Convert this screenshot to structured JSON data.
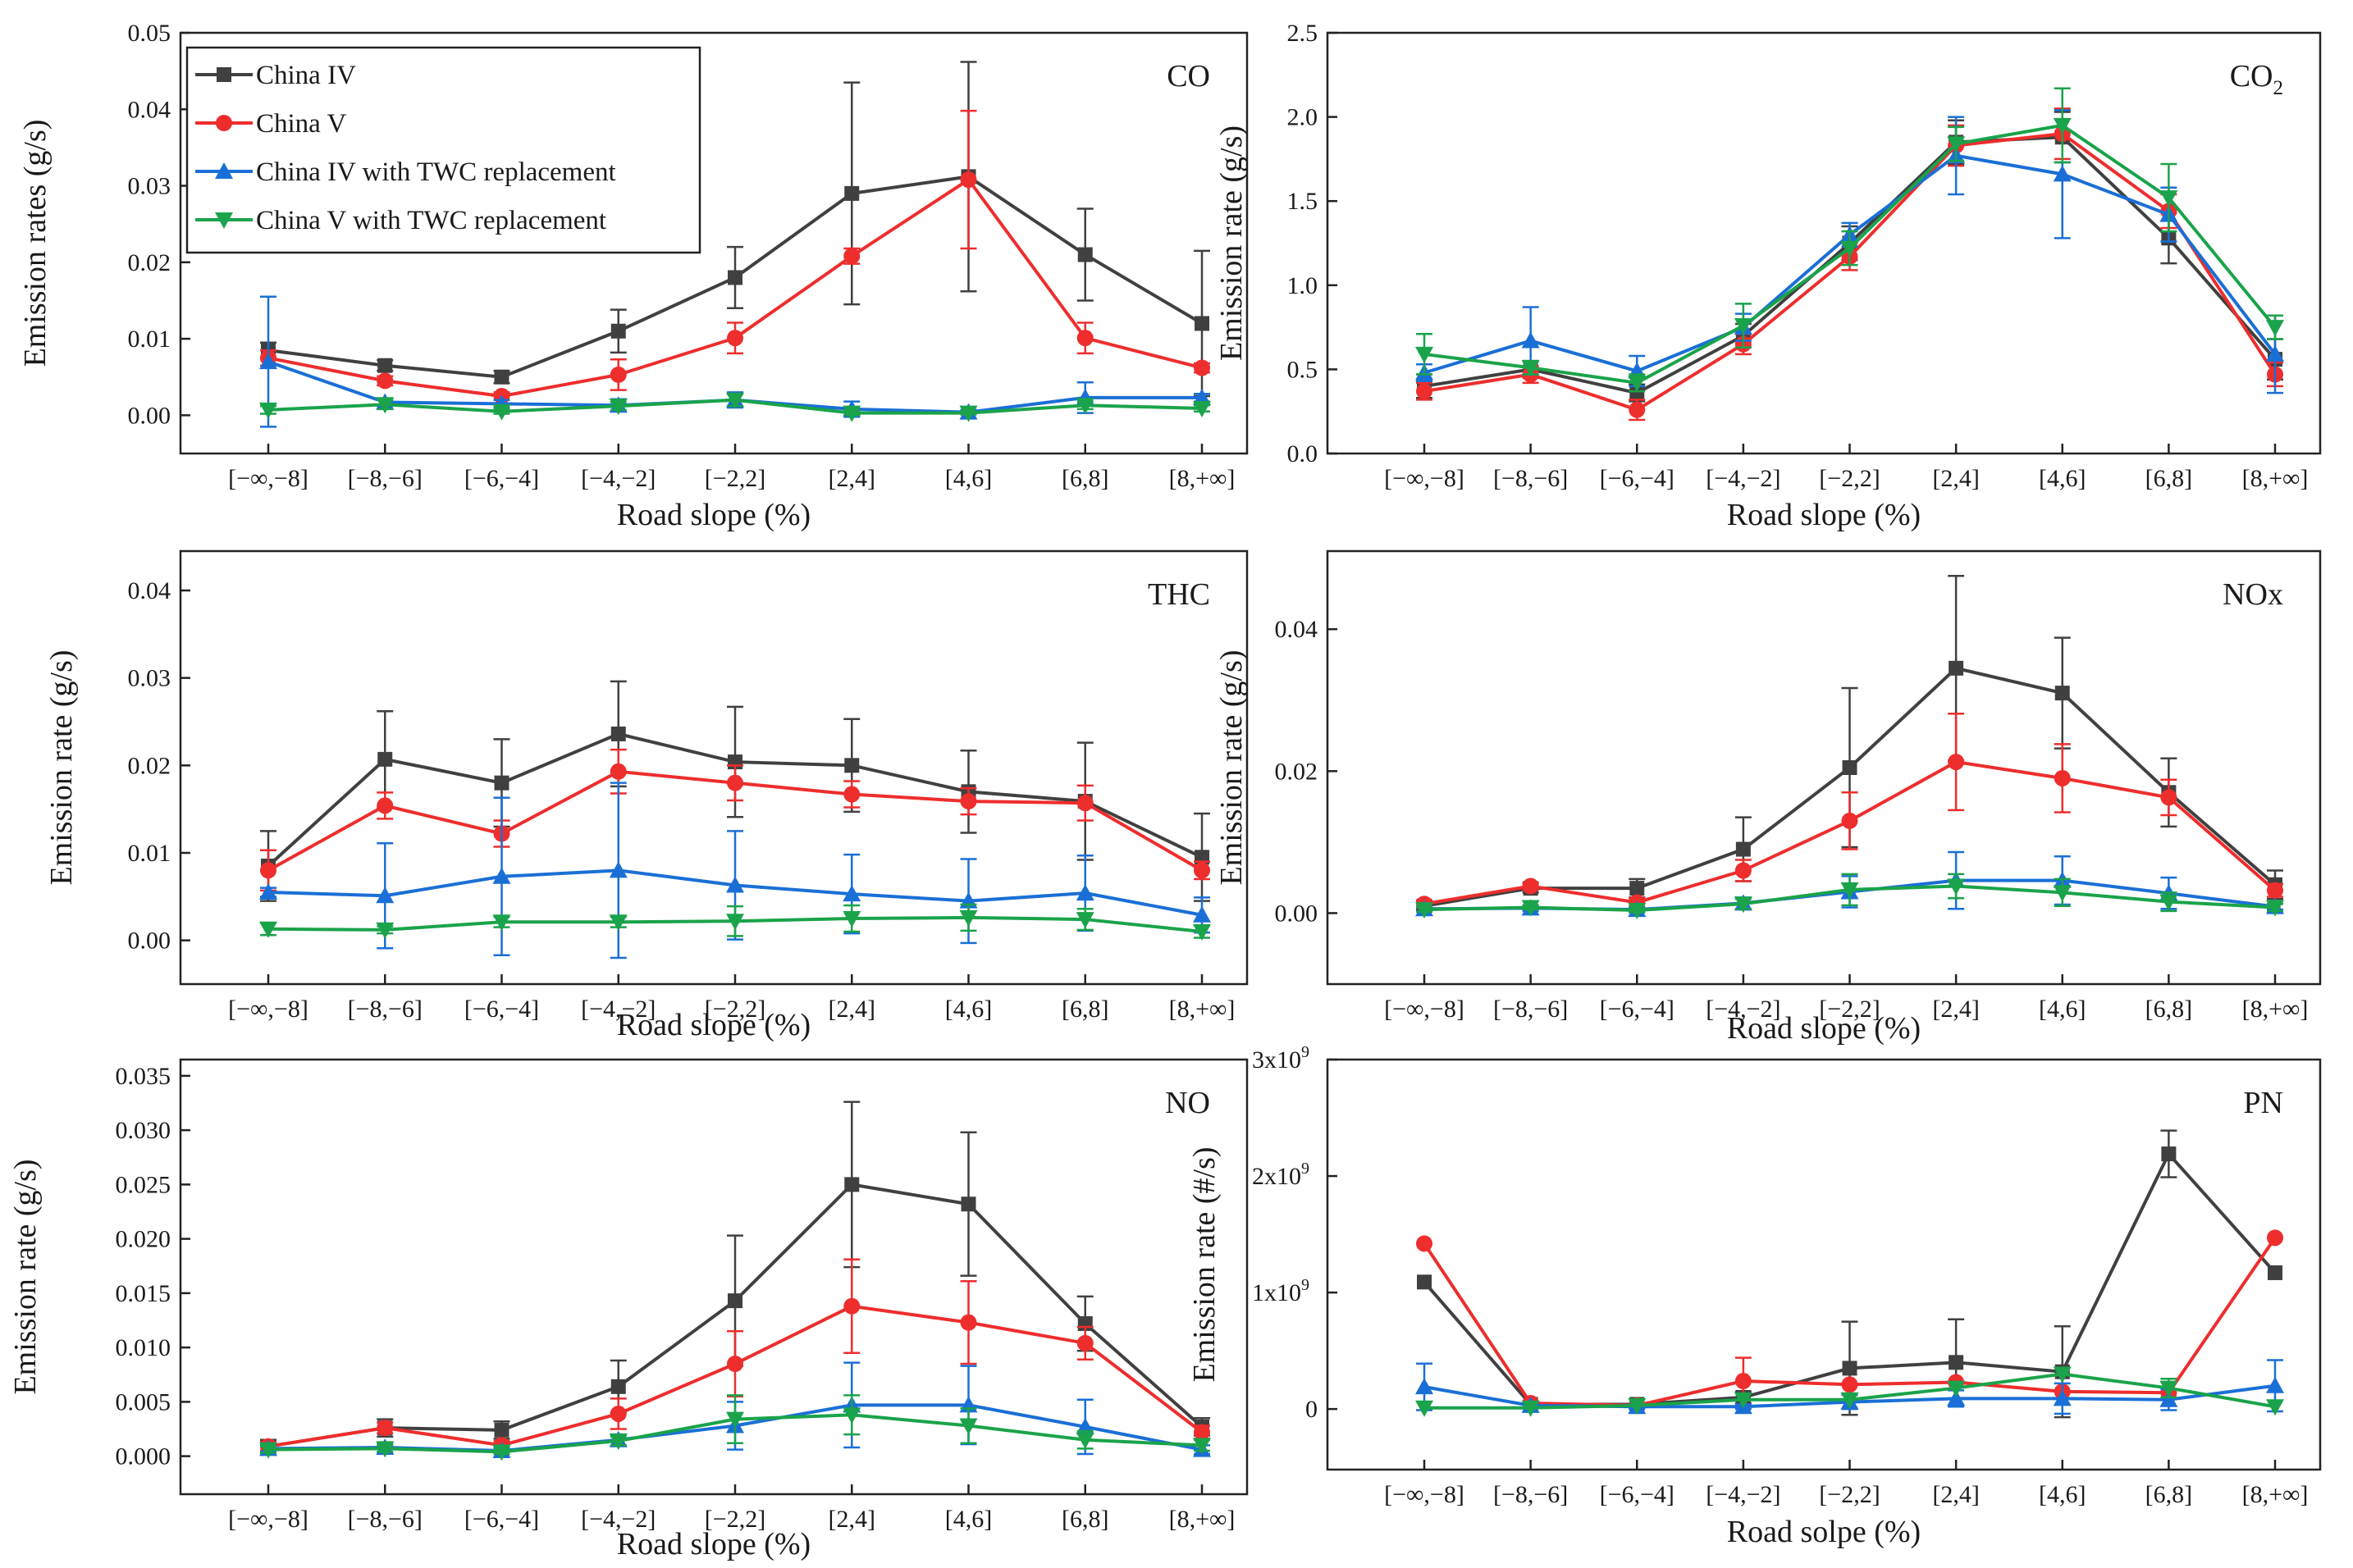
{
  "figure": {
    "series_names": [
      "China IV",
      "China V",
      "China IV with TWC replacement",
      "China V with TWC replacement"
    ],
    "series_colors": [
      "#404040",
      "#ee2d2d",
      "#1a6fd6",
      "#1aa34a"
    ],
    "series_markers": [
      "square",
      "circle",
      "triangle-up",
      "triangle-down"
    ]
  },
  "chart_data": [
    {
      "type": "line",
      "title": "CO",
      "xlabel": "Road slope (%)",
      "ylabel": "Emission rates (g/s)",
      "categories": [
        "[−∞,−8]",
        "[−8,−6]",
        "[−6,−4]",
        "[−4,−2]",
        "[−2,2]",
        "[2,4]",
        "[4,6]",
        "[6,8]",
        "[8,+∞]"
      ],
      "ylim": [
        -0.005,
        0.05
      ],
      "yticks": [
        0.0,
        0.01,
        0.02,
        0.03,
        0.04,
        0.05
      ],
      "ytick_labels": [
        "0.00",
        "0.01",
        "0.02",
        "0.03",
        "0.04",
        "0.05"
      ],
      "legend": "top-left",
      "series": [
        {
          "name": "China IV",
          "values": [
            0.0085,
            0.0065,
            0.005,
            0.011,
            0.018,
            0.029,
            0.0312,
            0.021,
            0.012
          ],
          "errors": [
            0.001,
            0.0007,
            0.0008,
            0.0028,
            0.004,
            0.0145,
            0.015,
            0.006,
            0.0095
          ]
        },
        {
          "name": "China V",
          "values": [
            0.0075,
            0.0045,
            0.0025,
            0.0053,
            0.0101,
            0.0208,
            0.0308,
            0.0101,
            0.0062
          ],
          "errors": [
            0.001,
            0.0006,
            0.0005,
            0.002,
            0.002,
            0.001,
            0.009,
            0.002,
            0.0006
          ]
        },
        {
          "name": "China IV with TWC replacement",
          "values": [
            0.007,
            0.0017,
            0.0015,
            0.0013,
            0.002,
            0.0008,
            0.0004,
            0.0023,
            0.0023
          ],
          "errors": [
            0.0085,
            0.0005,
            0.0005,
            0.0008,
            0.001,
            0.001,
            0.0003,
            0.002,
            0.0005
          ]
        },
        {
          "name": "China V with TWC replacement",
          "values": [
            0.0007,
            0.0014,
            0.0005,
            0.0012,
            0.002,
            0.0003,
            0.0003,
            0.0013,
            0.0009
          ],
          "errors": [
            0.0005,
            0.0006,
            0.0003,
            0.0005,
            0.0008,
            0.0003,
            0.0002,
            0.0005,
            0.0004
          ]
        }
      ]
    },
    {
      "type": "line",
      "title": "CO",
      "title_sub": "2",
      "xlabel": "Road slope (%)",
      "ylabel": "Emission rate (g/s)",
      "categories": [
        "[−∞,−8]",
        "[−8,−6]",
        "[−6,−4]",
        "[−4,−2]",
        "[−2,2]",
        "[2,4]",
        "[4,6]",
        "[6,8]",
        "[8,+∞]"
      ],
      "ylim": [
        0.0,
        2.5
      ],
      "yticks": [
        0.0,
        0.5,
        1.0,
        1.5,
        2.0,
        2.5
      ],
      "ytick_labels": [
        "0.0",
        "0.5",
        "1.0",
        "1.5",
        "2.0",
        "2.5"
      ],
      "series": [
        {
          "name": "China IV",
          "values": [
            0.4,
            0.5,
            0.36,
            0.7,
            1.25,
            1.85,
            1.88,
            1.28,
            0.56
          ],
          "errors": [
            0.07,
            0.05,
            0.05,
            0.07,
            0.1,
            0.13,
            0.15,
            0.15,
            0.12
          ]
        },
        {
          "name": "China V",
          "values": [
            0.37,
            0.47,
            0.26,
            0.65,
            1.17,
            1.83,
            1.9,
            1.44,
            0.47
          ],
          "errors": [
            0.05,
            0.05,
            0.06,
            0.06,
            0.08,
            0.12,
            0.15,
            0.1,
            0.07
          ]
        },
        {
          "name": "China IV with TWC replacement",
          "values": [
            0.48,
            0.67,
            0.49,
            0.75,
            1.3,
            1.77,
            1.66,
            1.42,
            0.59
          ],
          "errors": [
            0.05,
            0.2,
            0.09,
            0.08,
            0.07,
            0.23,
            0.38,
            0.16,
            0.23
          ]
        },
        {
          "name": "China V with TWC replacement",
          "values": [
            0.59,
            0.51,
            0.42,
            0.76,
            1.22,
            1.84,
            1.95,
            1.52,
            0.75
          ],
          "errors": [
            0.12,
            0.04,
            0.05,
            0.13,
            0.1,
            0.1,
            0.22,
            0.2,
            0.07
          ]
        }
      ]
    },
    {
      "type": "line",
      "title": "THC",
      "xlabel": "Road slope (%)",
      "ylabel": "Emission rate (g/s)",
      "categories": [
        "[−∞,−8]",
        "[−8,−6]",
        "[−6,−4]",
        "[−4,−2]",
        "[−2,2]",
        "[2,4]",
        "[4,6]",
        "[6,8]",
        "[8,+∞]"
      ],
      "ylim": [
        -0.005,
        0.0445
      ],
      "yticks": [
        0.0,
        0.01,
        0.02,
        0.03,
        0.04
      ],
      "ytick_labels": [
        "0.00",
        "0.01",
        "0.02",
        "0.03",
        "0.04"
      ],
      "series": [
        {
          "name": "China IV",
          "values": [
            0.0085,
            0.0207,
            0.018,
            0.0236,
            0.0204,
            0.02,
            0.017,
            0.0159,
            0.0095
          ],
          "errors": [
            0.004,
            0.0055,
            0.005,
            0.006,
            0.0063,
            0.0053,
            0.0047,
            0.0067,
            0.005
          ]
        },
        {
          "name": "China V",
          "values": [
            0.008,
            0.0154,
            0.0122,
            0.0193,
            0.018,
            0.0167,
            0.0159,
            0.0157,
            0.008
          ],
          "errors": [
            0.0023,
            0.0015,
            0.0015,
            0.0025,
            0.002,
            0.0015,
            0.0015,
            0.002,
            0.001
          ]
        },
        {
          "name": "China IV with TWC replacement",
          "values": [
            0.0055,
            0.0051,
            0.0073,
            0.008,
            0.0063,
            0.0053,
            0.0045,
            0.0054,
            0.0029
          ],
          "errors": [
            0.0005,
            0.006,
            0.009,
            0.01,
            0.0062,
            0.0045,
            0.0048,
            0.0043,
            0.002
          ]
        },
        {
          "name": "China V with TWC replacement",
          "values": [
            0.0013,
            0.0012,
            0.0021,
            0.0021,
            0.0022,
            0.0025,
            0.0026,
            0.0024,
            0.001
          ],
          "errors": [
            0.0007,
            0.0004,
            0.0006,
            0.0006,
            0.0017,
            0.0015,
            0.0015,
            0.0012,
            0.0007
          ]
        }
      ]
    },
    {
      "type": "line",
      "title": "NOx",
      "xlabel": "Road slope (%)",
      "ylabel": "Emission rate (g/s)",
      "categories": [
        "[−∞,−8]",
        "[−8,−6]",
        "[−6,−4]",
        "[−4,−2]",
        "[−2,2]",
        "[2,4]",
        "[4,6]",
        "[6,8]",
        "[8,+∞]"
      ],
      "ylim": [
        -0.01,
        0.051
      ],
      "yticks": [
        0.0,
        0.02,
        0.04
      ],
      "ytick_labels": [
        "0.00",
        "0.02",
        "0.04"
      ],
      "series": [
        {
          "name": "China IV",
          "values": [
            0.001,
            0.0035,
            0.0035,
            0.009,
            0.0205,
            0.0345,
            0.031,
            0.017,
            0.004
          ],
          "errors": [
            0.0005,
            0.0006,
            0.0013,
            0.0045,
            0.0112,
            0.013,
            0.0078,
            0.0048,
            0.002
          ]
        },
        {
          "name": "China V",
          "values": [
            0.0013,
            0.0038,
            0.0015,
            0.006,
            0.013,
            0.0213,
            0.019,
            0.0163,
            0.0032
          ],
          "errors": [
            0.0005,
            0.0005,
            0.0006,
            0.0015,
            0.004,
            0.0068,
            0.0048,
            0.0025,
            0.0009
          ]
        },
        {
          "name": "China IV with TWC replacement",
          "values": [
            0.0006,
            0.0007,
            0.0005,
            0.0014,
            0.003,
            0.0046,
            0.0046,
            0.0028,
            0.0009
          ],
          "errors": [
            0.0003,
            0.0004,
            0.0003,
            0.0008,
            0.0022,
            0.004,
            0.0034,
            0.0022,
            0.0004
          ]
        },
        {
          "name": "China V with TWC replacement",
          "values": [
            0.0005,
            0.0008,
            0.0004,
            0.0013,
            0.0033,
            0.0038,
            0.0029,
            0.0016,
            0.0008
          ],
          "errors": [
            0.0003,
            0.0003,
            0.0003,
            0.0007,
            0.0022,
            0.0017,
            0.0019,
            0.0013,
            0.0005
          ]
        }
      ]
    },
    {
      "type": "line",
      "title": "NO",
      "xlabel": "Road slope (%)",
      "ylabel": "Emission rate (g/s)",
      "categories": [
        "[−∞,−8]",
        "[−8,−6]",
        "[−6,−4]",
        "[−4,−2]",
        "[−2,2]",
        "[2,4]",
        "[4,6]",
        "[6,8]",
        "[8,+∞]"
      ],
      "ylim": [
        -0.0035,
        0.0365
      ],
      "yticks": [
        0.0,
        0.005,
        0.01,
        0.015,
        0.02,
        0.025,
        0.03,
        0.035
      ],
      "ytick_labels": [
        "0.000",
        "0.005",
        "0.010",
        "0.015",
        "0.020",
        "0.025",
        "0.030",
        "0.035"
      ],
      "series": [
        {
          "name": "China IV",
          "values": [
            0.0009,
            0.0026,
            0.0024,
            0.0064,
            0.0143,
            0.025,
            0.0232,
            0.0122,
            0.0027
          ],
          "errors": [
            0.0006,
            0.0008,
            0.0008,
            0.0024,
            0.006,
            0.0076,
            0.0066,
            0.0025,
            0.0008
          ]
        },
        {
          "name": "China V",
          "values": [
            0.0009,
            0.0026,
            0.001,
            0.0039,
            0.0085,
            0.0138,
            0.0123,
            0.0104,
            0.0022
          ],
          "errors": [
            0.0004,
            0.0005,
            0.0004,
            0.0014,
            0.003,
            0.0043,
            0.0038,
            0.0015,
            0.0006
          ]
        },
        {
          "name": "China IV with TWC replacement",
          "values": [
            0.0007,
            0.0008,
            0.0005,
            0.0015,
            0.0028,
            0.0047,
            0.0047,
            0.0027,
            0.0006
          ],
          "errors": [
            0.0003,
            0.0004,
            0.0003,
            0.0005,
            0.0022,
            0.0039,
            0.0036,
            0.0025,
            0.0004
          ]
        },
        {
          "name": "China V with TWC replacement",
          "values": [
            0.0006,
            0.0007,
            0.0004,
            0.0014,
            0.0034,
            0.0038,
            0.0028,
            0.0015,
            0.001
          ],
          "errors": [
            0.0003,
            0.0003,
            0.0002,
            0.0004,
            0.0022,
            0.0018,
            0.0016,
            0.0008,
            0.0005
          ]
        }
      ]
    },
    {
      "type": "line",
      "title": "PN",
      "xlabel": "Road solpe (%)",
      "ylabel": "Emission rate (#/s)",
      "categories": [
        "[−∞,−8]",
        "[−8,−6]",
        "[−6,−4]",
        "[−4,−2]",
        "[−2,2]",
        "[2,4]",
        "[4,6]",
        "[6,8]",
        "[8,+∞]"
      ],
      "ylim": [
        -520000000.0,
        3000000000.0
      ],
      "yticks": [
        0,
        1000000000.0,
        2000000000.0,
        3000000000.0
      ],
      "ytick_labels": [
        "0",
        "1x10",
        "2x10",
        "3x10"
      ],
      "ytick_sup": [
        "",
        "9",
        "9",
        "9"
      ],
      "series": [
        {
          "name": "China IV",
          "values": [
            1090000000.0,
            40000000.0,
            40000000.0,
            100000000.0,
            350000000.0,
            400000000.0,
            320000000.0,
            2190000000.0,
            1170000000.0
          ],
          "errors": [
            0,
            0,
            0,
            50000000.0,
            400000000.0,
            370000000.0,
            390000000.0,
            200000000.0,
            0
          ]
        },
        {
          "name": "China V",
          "values": [
            1420000000.0,
            50000000.0,
            30000000.0,
            240000000.0,
            210000000.0,
            230000000.0,
            150000000.0,
            140000000.0,
            1470000000.0
          ],
          "errors": [
            0,
            0,
            0,
            200000000.0,
            0,
            0,
            0,
            0,
            0
          ]
        },
        {
          "name": "China IV with TWC replacement",
          "values": [
            190000000.0,
            30000000.0,
            20000000.0,
            20000000.0,
            60000000.0,
            90000000.0,
            90000000.0,
            80000000.0,
            200000000.0
          ],
          "errors": [
            200000000.0,
            20000000.0,
            20000000.0,
            20000000.0,
            60000000.0,
            70000000.0,
            130000000.0,
            90000000.0,
            220000000.0
          ]
        },
        {
          "name": "China V with TWC replacement",
          "values": [
            10000000.0,
            10000000.0,
            30000000.0,
            80000000.0,
            80000000.0,
            180000000.0,
            300000000.0,
            180000000.0,
            20000000.0
          ],
          "errors": [
            0,
            0,
            0,
            0,
            0,
            0,
            0,
            80000000.0,
            0
          ]
        }
      ]
    }
  ]
}
